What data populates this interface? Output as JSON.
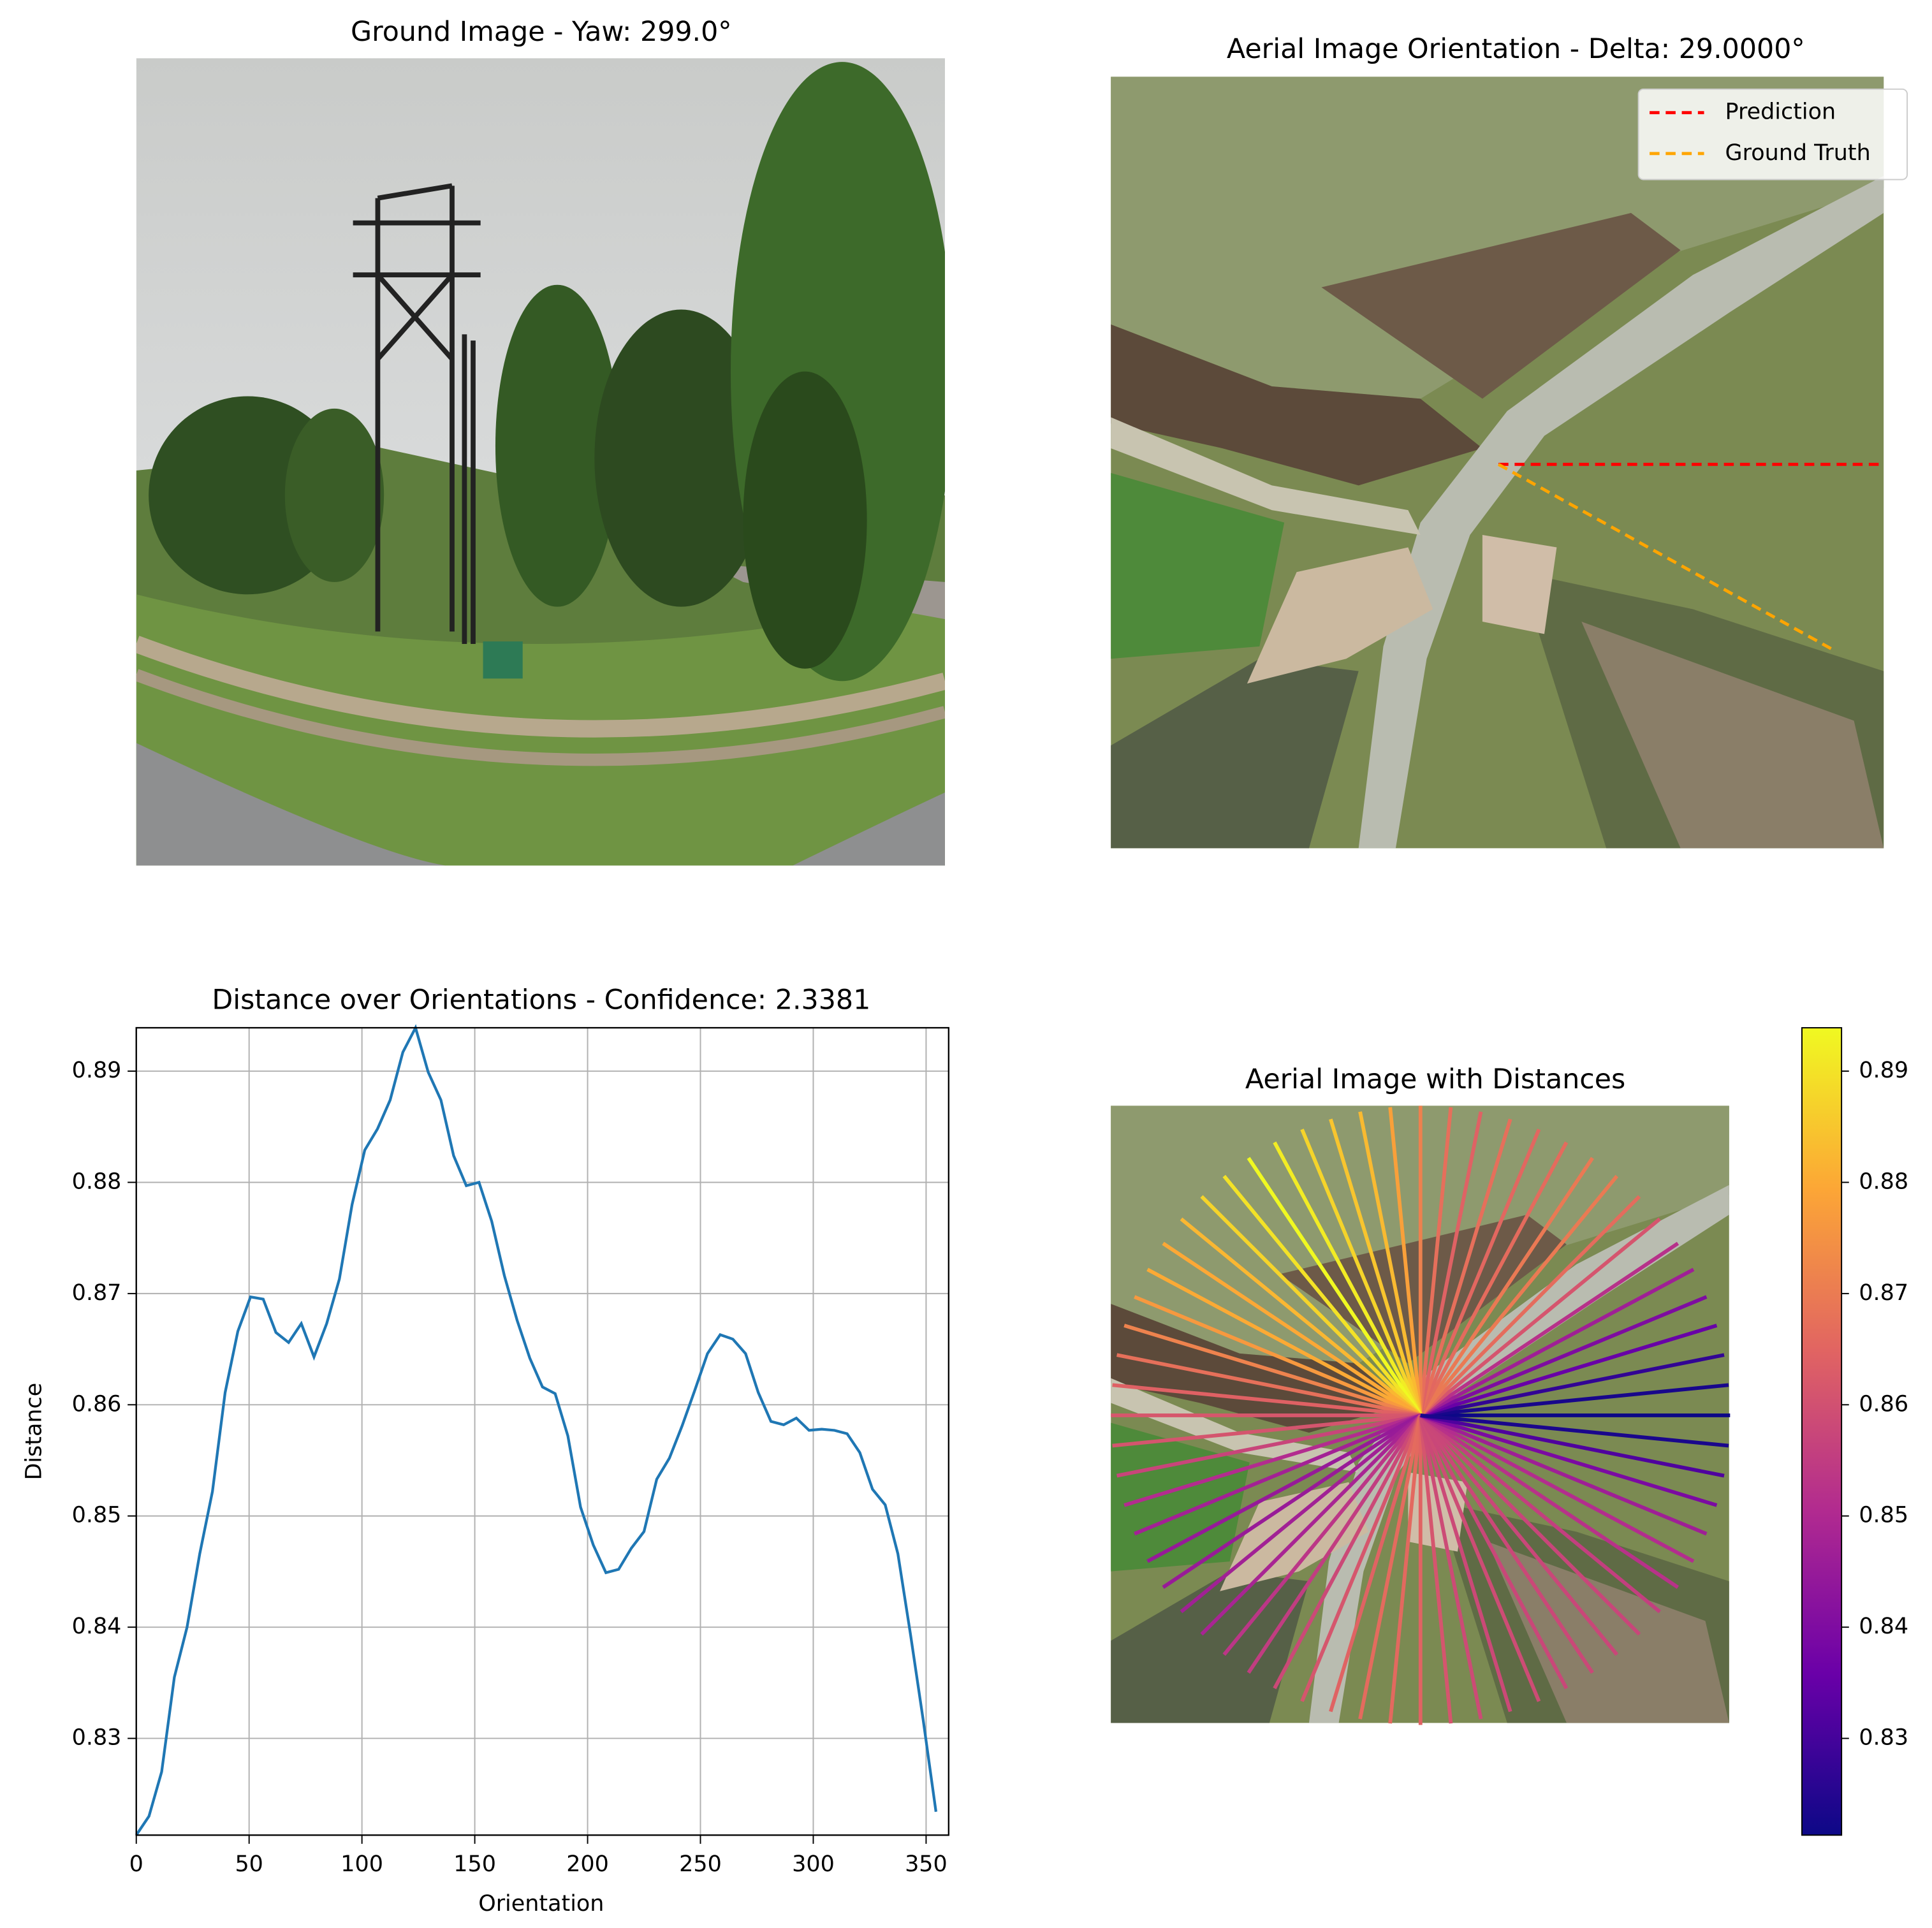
{
  "chart_data": [
    {
      "type": "image",
      "title": "Ground Image - Yaw: 299.0°"
    },
    {
      "type": "image",
      "title": "Aerial Image Orientation - Delta: 29.0000°",
      "legend": "upper right",
      "series": [
        {
          "name": "Prediction",
          "color": "#ff0000",
          "angle": 0
        },
        {
          "name": "Ground Truth",
          "color": "#ffa500",
          "angle": -29
        }
      ]
    },
    {
      "type": "line",
      "title": "Distance over Orientations - Confidence: 2.3381",
      "xlabel": "Orientation",
      "ylabel": "Distance",
      "color": "#1f77b4",
      "grid": true,
      "x": [
        0,
        5.625,
        11.25,
        16.875,
        22.5,
        28.125,
        33.75,
        39.375,
        45,
        50.625,
        56.25,
        61.875,
        67.5,
        73.125,
        78.75,
        84.375,
        90,
        95.625,
        101.25,
        106.875,
        112.5,
        118.125,
        123.75,
        129.375,
        135,
        140.625,
        146.25,
        151.875,
        157.5,
        163.125,
        168.75,
        174.375,
        180,
        185.625,
        191.25,
        196.875,
        202.5,
        208.125,
        213.75,
        219.375,
        225,
        230.625,
        236.25,
        241.875,
        247.5,
        253.125,
        258.75,
        264.375,
        270,
        275.625,
        281.25,
        286.875,
        292.5,
        298.125,
        303.75,
        309.375,
        315,
        320.625,
        326.25,
        331.875,
        337.5,
        343.125,
        348.75,
        354.375
      ],
      "values": [
        0.8213,
        0.823,
        0.827,
        0.8355,
        0.84,
        0.8466,
        0.8522,
        0.8611,
        0.8666,
        0.8697,
        0.8695,
        0.8665,
        0.8656,
        0.8673,
        0.8643,
        0.8673,
        0.8713,
        0.878,
        0.8829,
        0.8848,
        0.8874,
        0.8917,
        0.8939,
        0.8899,
        0.8874,
        0.8824,
        0.8797,
        0.88,
        0.8765,
        0.8716,
        0.8676,
        0.8642,
        0.8616,
        0.861,
        0.8572,
        0.8508,
        0.8474,
        0.8449,
        0.8452,
        0.8471,
        0.8486,
        0.8533,
        0.8552,
        0.8581,
        0.8613,
        0.8646,
        0.8663,
        0.8659,
        0.8646,
        0.8611,
        0.8585,
        0.8582,
        0.8588,
        0.8577,
        0.8578,
        0.8577,
        0.8574,
        0.8557,
        0.8524,
        0.851,
        0.8466,
        0.8393,
        0.8316,
        0.8234
      ],
      "xlim": [
        0,
        360
      ],
      "xticks": [
        0,
        50,
        100,
        150,
        200,
        250,
        300,
        350
      ],
      "ylim": [
        0.8213,
        0.8939
      ],
      "yticks": [
        0.83,
        0.84,
        0.85,
        0.86,
        0.87,
        0.88,
        0.89
      ]
    },
    {
      "type": "image",
      "title": "Aerial Image with Distances",
      "colormap": [
        "#0d0887",
        "#6a00a8",
        "#b12a90",
        "#e16462",
        "#fca636",
        "#f0f921"
      ],
      "clim": [
        0.8213,
        0.8939
      ],
      "cticks": [
        0.83,
        0.84,
        0.85,
        0.86,
        0.87,
        0.88,
        0.89
      ]
    }
  ]
}
